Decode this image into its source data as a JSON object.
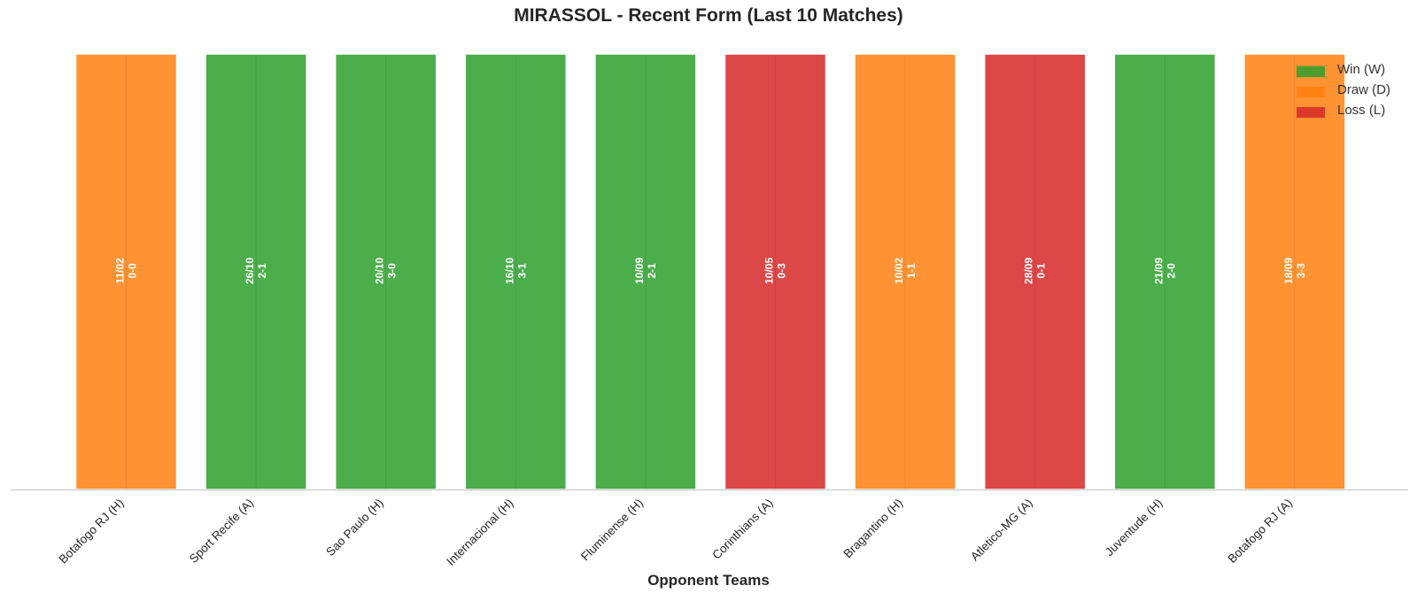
{
  "chart_data": {
    "type": "bar",
    "title": "MIRASSOL - Recent Form (Last 10 Matches)",
    "xlabel": "Opponent Teams",
    "ylabel": "",
    "grid": false,
    "legend_position": "top-right",
    "categories": [
      "Botafogo RJ (H)",
      "Sport Recife (A)",
      "Sao Paulo (H)",
      "Internacional (H)",
      "Fluminense (H)",
      "Corinthians (A)",
      "Bragantino (H)",
      "Atletico-MG (A)",
      "Juventude (H)",
      "Botafogo RJ (A)"
    ],
    "values": [
      1,
      1,
      1,
      1,
      1,
      1,
      1,
      1,
      1,
      1
    ],
    "results": [
      "D",
      "W",
      "W",
      "W",
      "W",
      "L",
      "D",
      "L",
      "W",
      "D"
    ],
    "dates": [
      "11/02",
      "26/10",
      "20/10",
      "16/10",
      "10/09",
      "10/05",
      "10/02",
      "28/09",
      "21/09",
      "18/09"
    ],
    "scores": [
      "0-0",
      "2-1",
      "3-0",
      "3-1",
      "2-1",
      "0-3",
      "1-1",
      "0-1",
      "2-0",
      "3-3"
    ],
    "legend": [
      {
        "key": "W",
        "label": "Win (W)",
        "color": "#2ca02c"
      },
      {
        "key": "D",
        "label": "Draw (D)",
        "color": "#ff7f0e"
      },
      {
        "key": "L",
        "label": "Loss (L)",
        "color": "#d62728"
      }
    ],
    "colors": {
      "W": "#2ca02c",
      "D": "#ff7f0e",
      "L": "#d62728"
    },
    "bar_opacity": 0.85,
    "ylim": [
      0,
      1
    ]
  }
}
